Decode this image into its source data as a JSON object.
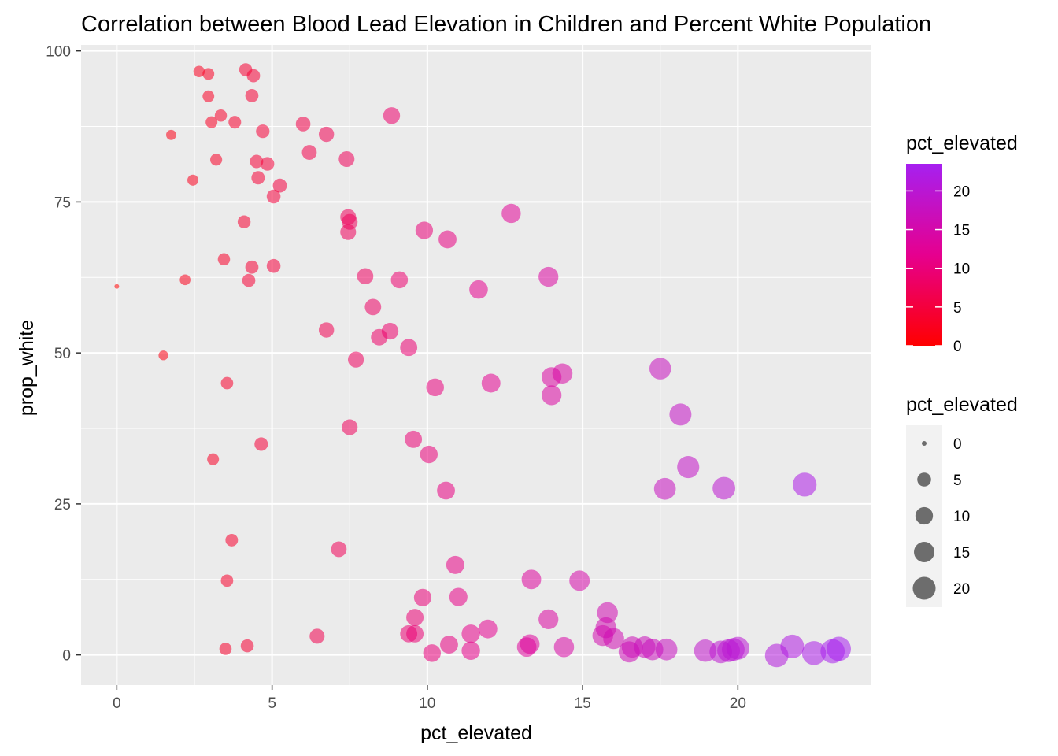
{
  "chart_data": {
    "type": "scatter",
    "title": "Correlation between Blood Lead Elevation in Children and Percent White Population",
    "xlabel": "pct_elevated",
    "ylabel": "prop_white",
    "xlim": [
      -1.15,
      24.3
    ],
    "ylim": [
      -5,
      101
    ],
    "x_ticks": [
      0,
      5,
      10,
      15,
      20
    ],
    "y_ticks": [
      0,
      25,
      50,
      75,
      100
    ],
    "x_tick_labels": [
      "0",
      "5",
      "10",
      "15",
      "20"
    ],
    "y_tick_labels": [
      "0",
      "25",
      "50",
      "75",
      "100"
    ],
    "grid": true,
    "color_scale": {
      "title": "pct_elevated",
      "low_color": "#ff0000",
      "mid_color": "#e6008f",
      "high_color": "#a620f0",
      "range": [
        0,
        23.5
      ],
      "breaks": [
        0,
        5,
        10,
        15,
        20
      ],
      "labels": [
        "0",
        "5",
        "10",
        "15",
        "20"
      ]
    },
    "size_scale": {
      "title": "pct_elevated",
      "breaks": [
        0,
        5,
        10,
        15,
        20
      ],
      "labels": [
        "0",
        "5",
        "10",
        "15",
        "20"
      ]
    },
    "legend_position": "right",
    "x": [
      0,
      1.5,
      1.75,
      2.2,
      2.45,
      2.65,
      2.95,
      2.95,
      3.05,
      3.1,
      3.2,
      3.35,
      3.45,
      3.5,
      3.55,
      3.55,
      3.7,
      3.8,
      4.1,
      4.15,
      4.2,
      4.25,
      4.35,
      4.35,
      4.4,
      4.5,
      4.55,
      4.65,
      4.7,
      4.85,
      5.05,
      5.05,
      5.25,
      6.0,
      6.2,
      6.45,
      6.75,
      6.75,
      7.15,
      7.4,
      7.45,
      7.45,
      7.5,
      7.5,
      7.7,
      8.0,
      8.25,
      8.45,
      8.8,
      8.85,
      9.1,
      9.4,
      9.4,
      9.55,
      9.6,
      9.6,
      9.85,
      9.9,
      10.05,
      10.15,
      10.25,
      10.6,
      10.65,
      10.7,
      10.9,
      11.0,
      11.4,
      11.4,
      11.65,
      11.95,
      12.05,
      12.7,
      13.2,
      13.3,
      13.35,
      13.9,
      13.9,
      14.0,
      14.0,
      14.35,
      14.4,
      14.9,
      15.65,
      15.75,
      15.8,
      16.0,
      16.5,
      16.6,
      17.0,
      17.25,
      17.5,
      17.65,
      17.7,
      18.15,
      18.4,
      18.95,
      19.45,
      19.55,
      19.7,
      19.85,
      20.0,
      21.25,
      21.75,
      22.15,
      22.45,
      23.05,
      23.25
    ],
    "y": [
      61,
      49.6,
      86.1,
      62.1,
      78.6,
      96.6,
      96.2,
      92.5,
      88.2,
      32.4,
      82.0,
      89.3,
      65.5,
      1.0,
      12.3,
      45.0,
      19.0,
      88.2,
      71.7,
      96.9,
      1.5,
      62.0,
      64.2,
      92.6,
      95.9,
      81.7,
      79.0,
      34.9,
      86.7,
      81.3,
      64.4,
      75.9,
      77.7,
      87.9,
      83.2,
      3.1,
      53.8,
      86.2,
      17.5,
      82.1,
      72.5,
      70.0,
      71.7,
      37.7,
      48.9,
      62.7,
      57.6,
      52.6,
      53.6,
      89.3,
      62.1,
      3.5,
      50.9,
      35.7,
      6.2,
      3.5,
      9.5,
      70.3,
      33.2,
      0.3,
      44.3,
      27.2,
      68.8,
      1.7,
      14.9,
      9.6,
      0.7,
      3.5,
      60.5,
      4.3,
      45.0,
      73.1,
      1.3,
      1.8,
      12.5,
      62.6,
      5.9,
      43.0,
      46.0,
      46.6,
      1.3,
      12.3,
      3.2,
      4.5,
      7.0,
      2.7,
      0.5,
      1.3,
      1.3,
      0.9,
      47.4,
      27.5,
      0.9,
      39.8,
      31.1,
      0.7,
      0.5,
      27.6,
      0.7,
      0.9,
      1.1,
      -0.1,
      1.4,
      28.2,
      0.3,
      0.6,
      1.0
    ]
  }
}
